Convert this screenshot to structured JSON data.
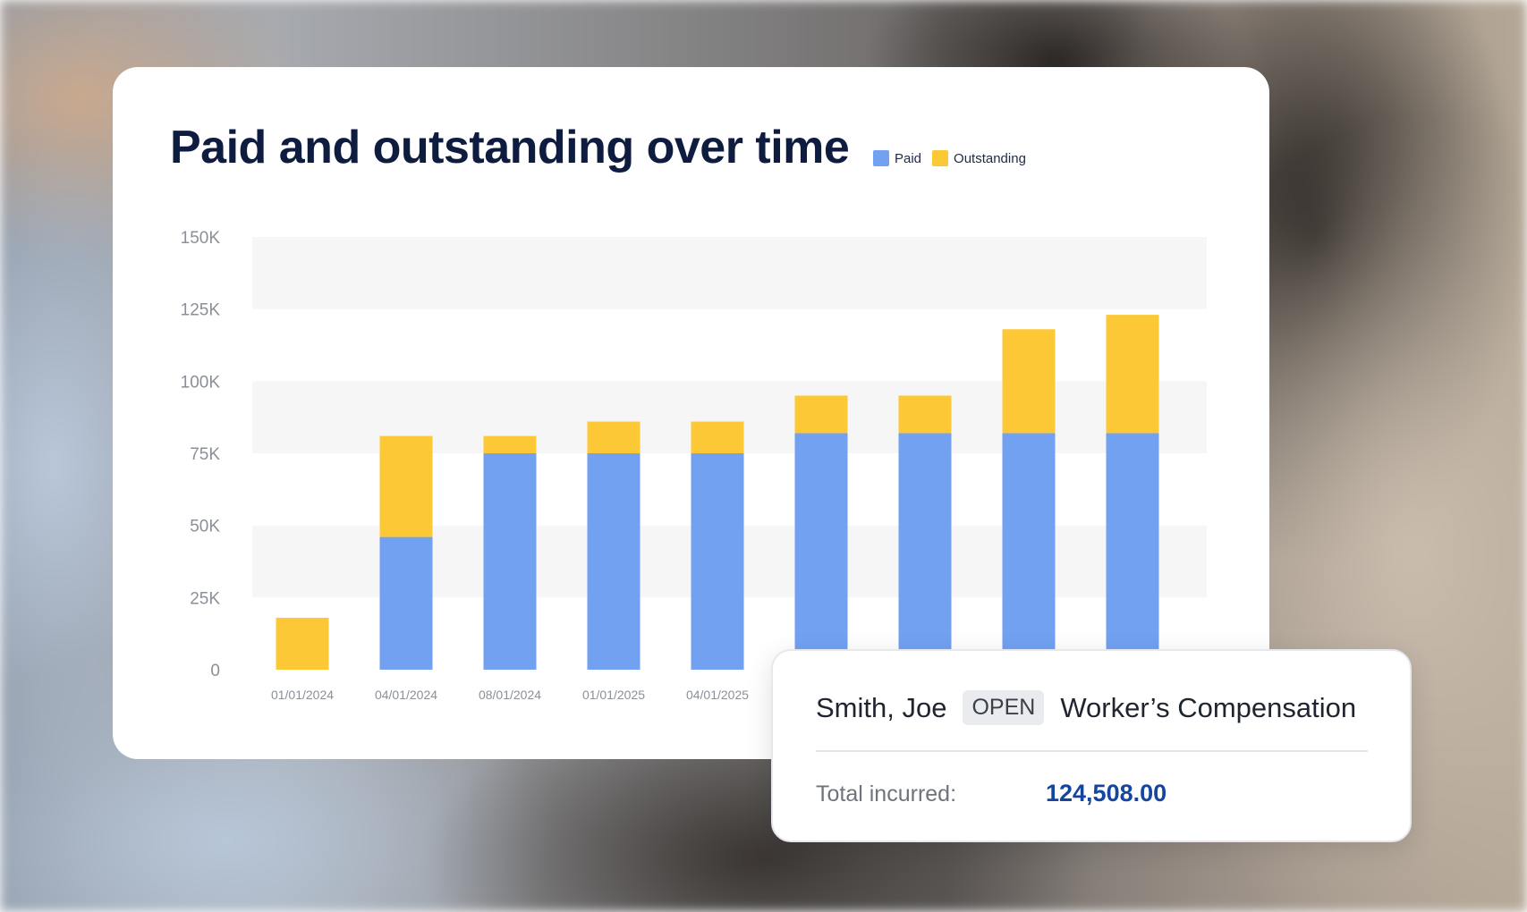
{
  "colors": {
    "paid": "#72A1F2",
    "outstanding": "#FDC835",
    "title": "#0E1C3F",
    "band": "#F6F6F6",
    "total_value": "#1446A0"
  },
  "chart_data": {
    "type": "bar",
    "stacked": true,
    "title": "Paid and outstanding over time",
    "legend_position": "top-right",
    "categories": [
      "01/01/2024",
      "04/01/2024",
      "08/01/2024",
      "01/01/2025",
      "04/01/2025",
      "",
      "",
      "",
      ""
    ],
    "series": [
      {
        "name": "Paid",
        "values": [
          0,
          46000,
          75000,
          75000,
          75000,
          82000,
          82000,
          82000,
          82000
        ]
      },
      {
        "name": "Outstanding",
        "values": [
          18000,
          35000,
          6000,
          11000,
          11000,
          13000,
          13000,
          36000,
          41000
        ]
      }
    ],
    "ylim": [
      0,
      150000
    ],
    "yticks": [
      0,
      25000,
      50000,
      75000,
      100000,
      125000,
      150000
    ],
    "ytick_labels": [
      "0",
      "25K",
      "50K",
      "75K",
      "100K",
      "125K",
      "150K"
    ],
    "grid": "alternating bands"
  },
  "claim": {
    "name": "Smith, Joe",
    "status": "OPEN",
    "type": "Worker’s Compensation",
    "total_label": "Total incurred:",
    "total_value": "124,508.00"
  }
}
